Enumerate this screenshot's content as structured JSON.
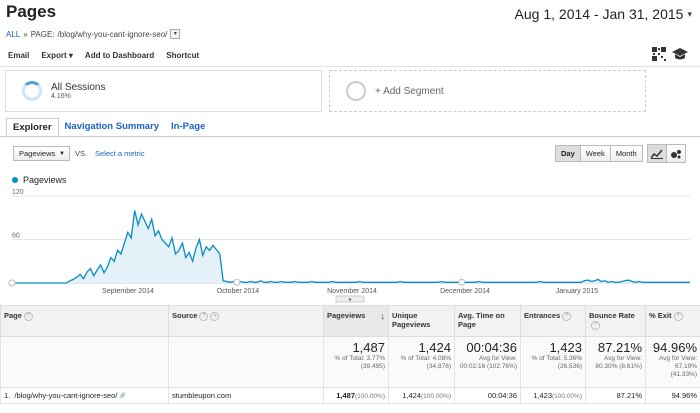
{
  "header": {
    "title": "Pages",
    "crumb_all": "ALL",
    "crumb_sep": "»",
    "crumb_label": "PAGE:",
    "crumb_page": "/blog/why-you-cant-ignore-seo/",
    "date_range": "Aug 1, 2014 - Jan 31, 2015"
  },
  "toolbar": {
    "email": "Email",
    "export": "Export ▾",
    "add_dashboard": "Add to Dashboard",
    "shortcut": "Shortcut"
  },
  "segments": {
    "seg1_name": "All Sessions",
    "seg1_pct": "4.16%",
    "seg2_name": "+ Add Segment"
  },
  "tabs": [
    "Explorer",
    "Navigation Summary",
    "In-Page"
  ],
  "controls": {
    "metric": "Pageviews",
    "vs": "VS.",
    "select_metric": "Select a metric",
    "day": "Day",
    "week": "Week",
    "month": "Month"
  },
  "chart_data": {
    "type": "area",
    "series": [
      {
        "name": "Pageviews",
        "color": "#058dc7"
      }
    ],
    "y_ticks": [
      "120",
      "60"
    ],
    "ylim": [
      0,
      120
    ],
    "x_labels": [
      "September 2014",
      "October 2014",
      "November 2014",
      "December 2014",
      "January 2015"
    ],
    "values": [
      0,
      0,
      0,
      0,
      0,
      0,
      0,
      0,
      0,
      0,
      0,
      0,
      0,
      0,
      0,
      0,
      0,
      3,
      5,
      8,
      12,
      6,
      15,
      20,
      10,
      18,
      25,
      14,
      22,
      35,
      30,
      45,
      40,
      55,
      70,
      62,
      100,
      80,
      95,
      85,
      75,
      88,
      65,
      72,
      60,
      55,
      50,
      62,
      40,
      45,
      55,
      35,
      42,
      30,
      48,
      60,
      38,
      50,
      45,
      52,
      46,
      40,
      3,
      2,
      1,
      2,
      1,
      2,
      1,
      1,
      2,
      1,
      1,
      3,
      1,
      1,
      2,
      1,
      1,
      2,
      1,
      1,
      1,
      2,
      1,
      1,
      1,
      1,
      2,
      1,
      1,
      1,
      1,
      1,
      2,
      1,
      1,
      1,
      1,
      1,
      1,
      1,
      2,
      1,
      1,
      1,
      1,
      1,
      1,
      1,
      1,
      1,
      1,
      1,
      2,
      1,
      1,
      1,
      1,
      1,
      1,
      1,
      1,
      1,
      1,
      1,
      2,
      1,
      1,
      1,
      1,
      1,
      1,
      1,
      1,
      1,
      1,
      2,
      1,
      1,
      1,
      1,
      1,
      1,
      1,
      1,
      1,
      1,
      1,
      1,
      1,
      1,
      1,
      1,
      1,
      2,
      1,
      1,
      1,
      1,
      1,
      1,
      1,
      1,
      1,
      1,
      1,
      1,
      3,
      4,
      2,
      3,
      5,
      2,
      3,
      1,
      2,
      1,
      1,
      2,
      3,
      4,
      2,
      1,
      2,
      1,
      1,
      1,
      1,
      1,
      1,
      1,
      1,
      1,
      1,
      1,
      1,
      1,
      1,
      1
    ]
  },
  "table": {
    "headers": {
      "page": "Page",
      "source": "Source",
      "pageviews": "Pageviews",
      "unique": "Unique Pageviews",
      "avg_time": "Avg. Time on Page",
      "entrances": "Entrances",
      "bounce": "Bounce Rate",
      "exit": "% Exit"
    },
    "sort_arrow": "↓",
    "summary": {
      "pageviews": "1,487",
      "pageviews_sub": "% of Total: 3.77% (39,495)",
      "unique": "1,424",
      "unique_sub": "% of Total: 4.08% (34,876)",
      "avg_time": "00:04:36",
      "avg_time_sub": "Avg for View: 00:02:16 (102.76%)",
      "entrances": "1,423",
      "entrances_sub": "% of Total: 5.36% (26,536)",
      "bounce": "87.21%",
      "bounce_sub": "Avg for View: 80.30% (8.61%)",
      "exit": "94.96%",
      "exit_sub": "Avg for View: 67.19% (41.33%)"
    },
    "row1": {
      "index": "1.",
      "page": "/blog/why-you-cant-ignore-seo/",
      "source": "stumbleupon.com",
      "pageviews": "1,487",
      "pageviews_pct": "(100.00%)",
      "unique": "1,424",
      "unique_pct": "(100.00%)",
      "avg_time": "00:04:36",
      "entrances": "1,423",
      "entrances_pct": "(100.00%)",
      "bounce": "87.21%",
      "exit": "94.96%"
    }
  }
}
